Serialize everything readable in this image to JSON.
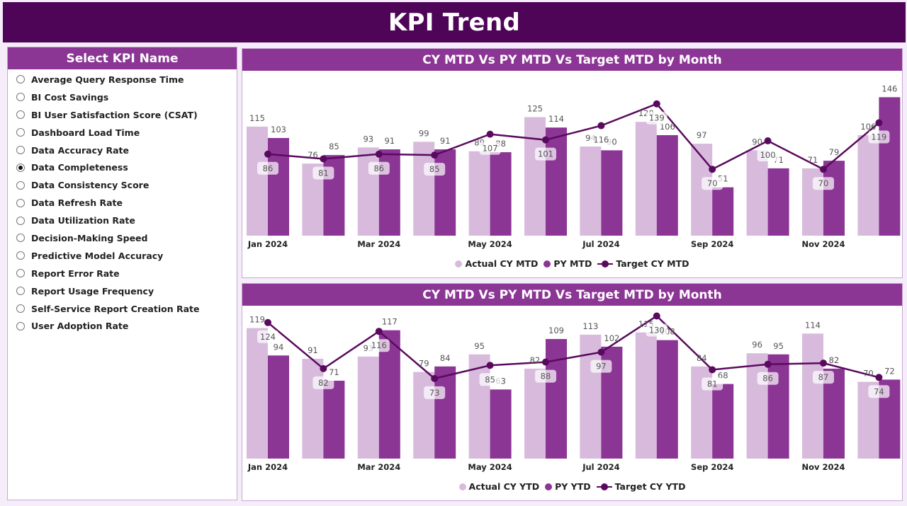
{
  "header": {
    "title": "KPI Trend"
  },
  "sidebar": {
    "title": "Select KPI Name",
    "selected": "Data Completeness",
    "items": [
      "Average Query Response Time",
      "BI Cost Savings",
      "BI User Satisfaction Score (CSAT)",
      "Dashboard Load Time",
      "Data Accuracy Rate",
      "Data Completeness",
      "Data Consistency Score",
      "Data Refresh Rate",
      "Data Utilization Rate",
      "Decision-Making Speed",
      "Predictive Model Accuracy",
      "Report Error Rate",
      "Report Usage Frequency",
      "Self-Service Report Creation Rate",
      "User Adoption Rate"
    ]
  },
  "colors": {
    "header": "#4e0457",
    "panel_header": "#8b3595",
    "actual": "#d8bbdc",
    "py": "#8b3595",
    "target": "#5a0a5e"
  },
  "chart_data": [
    {
      "type": "bar",
      "title": "CY MTD Vs PY MTD Vs Target MTD by Month",
      "categories": [
        "Jan 2024",
        "Feb 2024",
        "Mar 2024",
        "Apr 2024",
        "May 2024",
        "Jun 2024",
        "Jul 2024",
        "Aug 2024",
        "Sep 2024",
        "Oct 2024",
        "Nov 2024",
        "Dec 2024"
      ],
      "x_tick_labels": [
        "Jan 2024",
        "Mar 2024",
        "May 2024",
        "Jul 2024",
        "Sep 2024",
        "Nov 2024"
      ],
      "series": [
        {
          "name": "Actual CY MTD",
          "type": "bar",
          "values": [
            115,
            76,
            93,
            99,
            89,
            125,
            94,
            120,
            97,
            90,
            71,
            106
          ]
        },
        {
          "name": "PY MTD",
          "type": "bar",
          "values": [
            103,
            85,
            91,
            91,
            88,
            114,
            90,
            106,
            51,
            71,
            79,
            146
          ]
        },
        {
          "name": "Target CY MTD",
          "type": "line",
          "values": [
            86,
            81,
            86,
            85,
            107,
            101,
            116,
            139,
            70,
            100,
            70,
            119
          ]
        }
      ],
      "legend": "bottom-center",
      "grid": false
    },
    {
      "type": "bar",
      "title": "CY MTD Vs PY MTD Vs Target MTD by Month",
      "categories": [
        "Jan 2024",
        "Feb 2024",
        "Mar 2024",
        "Apr 2024",
        "May 2024",
        "Jun 2024",
        "Jul 2024",
        "Aug 2024",
        "Sep 2024",
        "Oct 2024",
        "Nov 2024",
        "Dec 2024"
      ],
      "x_tick_labels": [
        "Jan 2024",
        "Mar 2024",
        "May 2024",
        "Jul 2024",
        "Sep 2024",
        "Nov 2024"
      ],
      "series": [
        {
          "name": "Actual CY YTD",
          "type": "bar",
          "values": [
            119,
            91,
            93,
            79,
            95,
            82,
            113,
            115,
            84,
            96,
            114,
            70
          ]
        },
        {
          "name": "PY YTD",
          "type": "bar",
          "values": [
            94,
            71,
            117,
            84,
            63,
            109,
            102,
            108,
            68,
            95,
            82,
            72
          ]
        },
        {
          "name": "Target CY YTD",
          "type": "line",
          "values": [
            124,
            82,
            116,
            73,
            85,
            88,
            97,
            130,
            81,
            86,
            87,
            74
          ]
        }
      ],
      "legend": "bottom-center",
      "grid": false
    }
  ]
}
